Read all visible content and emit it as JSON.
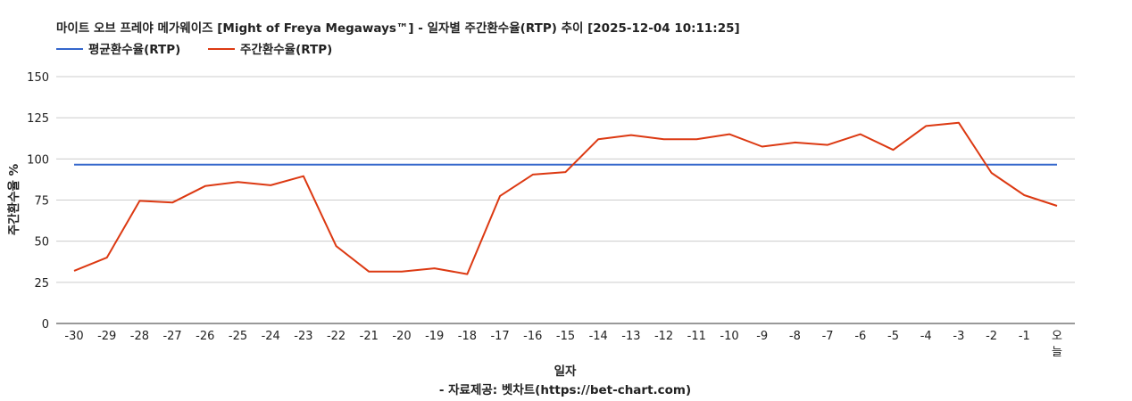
{
  "chart_data": {
    "type": "line",
    "title": "마이트 오브 프레야 메가웨이즈 [Might of Freya Megaways™] - 일자별 주간환수율(RTP) 추이 [2025-12-04 10:11:25]",
    "xlabel": "일자",
    "ylabel": "주간환수율 %",
    "footer": "- 자료제공: 벳차트(https://bet-chart.com)",
    "ylim": [
      0,
      150
    ],
    "yticks": [
      "0",
      "25",
      "50",
      "75",
      "100",
      "125",
      "150"
    ],
    "categories": [
      "-30",
      "-29",
      "-28",
      "-27",
      "-26",
      "-25",
      "-24",
      "-23",
      "-22",
      "-21",
      "-20",
      "-19",
      "-18",
      "-17",
      "-16",
      "-15",
      "-14",
      "-13",
      "-12",
      "-11",
      "-10",
      "-9",
      "-8",
      "-7",
      "-6",
      "-5",
      "-4",
      "-3",
      "-2",
      "-1",
      "오늘"
    ],
    "legend_position": "top-left",
    "grid": true,
    "series": [
      {
        "name": "평균환수율(RTP)",
        "color": "#3366cc",
        "values": [
          96.5,
          96.5,
          96.5,
          96.5,
          96.5,
          96.5,
          96.5,
          96.5,
          96.5,
          96.5,
          96.5,
          96.5,
          96.5,
          96.5,
          96.5,
          96.5,
          96.5,
          96.5,
          96.5,
          96.5,
          96.5,
          96.5,
          96.5,
          96.5,
          96.5,
          96.5,
          96.5,
          96.5,
          96.5,
          96.5,
          96.5
        ]
      },
      {
        "name": "주간환수율(RTP)",
        "color": "#dc3912",
        "values": [
          32,
          40,
          74.5,
          73.5,
          83.5,
          86,
          84,
          89.5,
          47,
          31.5,
          31.5,
          33.5,
          30,
          77.5,
          90.5,
          92,
          112,
          114.5,
          112,
          112,
          115,
          107.5,
          110,
          108.5,
          115,
          105.5,
          120,
          122,
          91.5,
          78,
          71.5
        ]
      }
    ]
  }
}
